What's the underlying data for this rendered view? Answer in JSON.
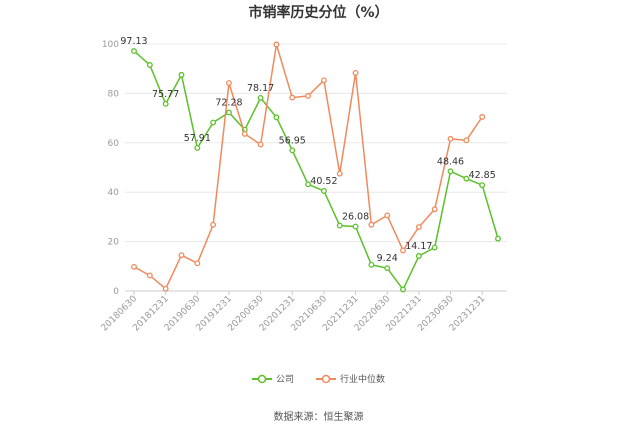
{
  "title": "市销率历史分位（%）",
  "source": "数据来源：恒生聚源",
  "colors": {
    "company": "#5cc02a",
    "industry": "#f08a5d",
    "grid": "#e8e8e8",
    "axis": "#cccccc"
  },
  "chart_data": {
    "type": "line",
    "title": "市销率历史分位（%）",
    "ylim": [
      0,
      100
    ],
    "y_ticks": [
      0,
      20,
      40,
      60,
      80,
      100
    ],
    "x_tick_labels": [
      "20180630",
      "20181231",
      "20190630",
      "20191231",
      "20200630",
      "20201231",
      "20210630",
      "20211231",
      "20220630",
      "20221231",
      "20230630",
      "20231231"
    ],
    "grid": true,
    "legend_position": "bottom-center",
    "series": [
      {
        "name": "公司",
        "color": "#5cc02a",
        "values": [
          97.13,
          91.5,
          75.77,
          87.5,
          57.91,
          68.2,
          72.28,
          65.3,
          78.17,
          70.3,
          56.95,
          43.2,
          40.52,
          26.5,
          26.08,
          10.6,
          9.24,
          0.6,
          14.17,
          17.6,
          48.46,
          45.5,
          42.85,
          21.2
        ],
        "labels": [
          {
            "index": 0,
            "text": "97.13"
          },
          {
            "index": 2,
            "text": "75.77"
          },
          {
            "index": 4,
            "text": "57.91"
          },
          {
            "index": 6,
            "text": "72.28"
          },
          {
            "index": 8,
            "text": "78.17"
          },
          {
            "index": 10,
            "text": "56.95"
          },
          {
            "index": 12,
            "text": "40.52"
          },
          {
            "index": 14,
            "text": "26.08"
          },
          {
            "index": 16,
            "text": "9.24"
          },
          {
            "index": 18,
            "text": "14.17"
          },
          {
            "index": 20,
            "text": "48.46"
          },
          {
            "index": 22,
            "text": "42.85"
          }
        ]
      },
      {
        "name": "行业中位数",
        "color": "#f08a5d",
        "values": [
          9.8,
          6.3,
          0.9,
          14.5,
          11.2,
          26.8,
          84.2,
          63.6,
          59.3,
          99.8,
          78.3,
          79.0,
          85.3,
          47.5,
          88.3,
          26.8,
          30.6,
          16.4,
          25.9,
          33.1,
          61.6,
          61.0,
          70.5,
          null
        ]
      }
    ]
  }
}
